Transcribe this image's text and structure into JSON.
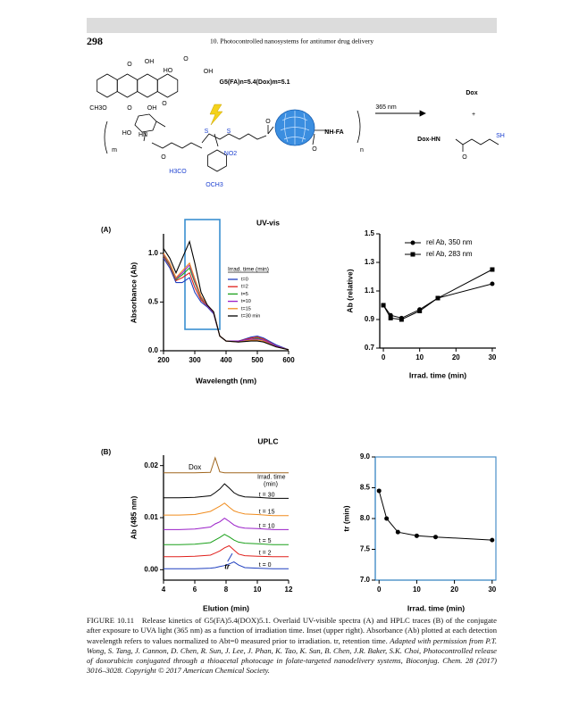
{
  "header": {
    "page_number": "298",
    "running_title": "10. Photocontrolled nanosystems for antitumor drug delivery"
  },
  "scheme": {
    "labels": [
      "G5(FA)n=5.4(Dox)m=5.1",
      "365 nm",
      "Dox",
      "+",
      "Dox-HN",
      "SH",
      "O",
      "O",
      "OH",
      "HO",
      "O",
      "OH",
      "CH3O",
      "O",
      "OH",
      "O",
      "HO",
      "HN",
      "m",
      "S",
      "S",
      "NO2",
      "H3CO",
      "OCH3",
      "O",
      "NH-FA",
      "n",
      "O",
      "O"
    ]
  },
  "panels": [
    "(A)",
    "(B)"
  ],
  "chart_data": [
    {
      "type": "line",
      "title": "UV-vis",
      "x_label": "Wavelength (nm)",
      "y_label": "Absorbance (Ab)",
      "x": [
        200,
        220,
        240,
        260,
        283,
        300,
        320,
        340,
        360,
        380,
        400,
        440,
        480,
        500,
        520,
        560,
        600
      ],
      "xlim": [
        200,
        600
      ],
      "xticks": [
        200,
        300,
        400,
        500,
        600
      ],
      "ylim": [
        0,
        1.2
      ],
      "yticks": [
        {
          "value": 0,
          "label": "0.0"
        },
        0.5,
        {
          "value": 1,
          "label": "1.0"
        }
      ],
      "legend_title": "Irrad. time (min)",
      "legend": "center right",
      "series": [
        {
          "name": "t=0",
          "color": "#1f3fbf",
          "values": [
            0.95,
            0.85,
            0.7,
            0.7,
            0.75,
            0.6,
            0.5,
            0.45,
            0.38,
            0.15,
            0.1,
            0.1,
            0.14,
            0.15,
            0.13,
            0.06,
            0.01
          ]
        },
        {
          "name": "t=2",
          "color": "#e0201c",
          "values": [
            0.97,
            0.87,
            0.72,
            0.75,
            0.8,
            0.65,
            0.52,
            0.46,
            0.39,
            0.15,
            0.1,
            0.1,
            0.13,
            0.14,
            0.12,
            0.05,
            0.01
          ]
        },
        {
          "name": "t=5",
          "color": "#1aa01a",
          "values": [
            0.98,
            0.88,
            0.73,
            0.78,
            0.85,
            0.7,
            0.54,
            0.46,
            0.39,
            0.15,
            0.1,
            0.1,
            0.12,
            0.13,
            0.11,
            0.05,
            0.01
          ]
        },
        {
          "name": "t=10",
          "color": "#9a1fc8",
          "values": [
            0.99,
            0.89,
            0.74,
            0.8,
            0.88,
            0.72,
            0.55,
            0.46,
            0.39,
            0.15,
            0.1,
            0.1,
            0.12,
            0.12,
            0.11,
            0.05,
            0.01
          ]
        },
        {
          "name": "t=15",
          "color": "#f08c1e",
          "values": [
            1.0,
            0.9,
            0.75,
            0.82,
            0.9,
            0.74,
            0.56,
            0.47,
            0.4,
            0.15,
            0.1,
            0.09,
            0.11,
            0.11,
            0.1,
            0.04,
            0.01
          ]
        },
        {
          "name": "t=30 min",
          "color": "#000000",
          "values": [
            1.05,
            0.95,
            0.8,
            0.95,
            1.12,
            0.9,
            0.6,
            0.47,
            0.4,
            0.15,
            0.1,
            0.09,
            0.1,
            0.1,
            0.09,
            0.04,
            0.01
          ]
        }
      ]
    },
    {
      "type": "line",
      "x_label": "Irrad. time (min)",
      "y_label": "Ab (relative)",
      "x": [
        0,
        2,
        5,
        10,
        15,
        30
      ],
      "xlim": [
        -1,
        31
      ],
      "xticks": [
        0,
        10,
        20,
        30
      ],
      "ylim": [
        0.7,
        1.5
      ],
      "yticks": [
        0.7,
        0.9,
        1.1,
        1.3,
        1.5
      ],
      "legend": "upper right",
      "series": [
        {
          "name": "rel Ab, 350 nm",
          "color": "#000000",
          "marker": "circle",
          "values": [
            1.0,
            0.93,
            0.91,
            0.97,
            1.05,
            1.15
          ]
        },
        {
          "name": "rel Ab, 283 nm",
          "color": "#000000",
          "marker": "square",
          "values": [
            1.0,
            0.91,
            0.9,
            0.96,
            1.05,
            1.25
          ]
        }
      ]
    },
    {
      "type": "line",
      "title": "UPLC",
      "x_label": "Elution (min)",
      "y_label": "Ab (485 nm)",
      "x": [
        4,
        5,
        6,
        7,
        7.3,
        7.6,
        7.9,
        8.2,
        8.5,
        8.8,
        9.2,
        10,
        11,
        12
      ],
      "xlim": [
        4,
        12
      ],
      "xticks": [
        4,
        6,
        8,
        10,
        12
      ],
      "ylim": [
        -0.002,
        0.022
      ],
      "yticks": [
        {
          "value": 0,
          "label": "0.00"
        },
        0.01,
        0.02
      ],
      "annotations": [
        "Irrad. time",
        "(min)",
        "tr"
      ],
      "series": [
        {
          "name": "Dox",
          "color": "#a0661e",
          "values": [
            0.0186,
            0.0186,
            0.0186,
            0.0187,
            0.0215,
            0.0188,
            0.0186,
            0.0186,
            0.0186,
            0.0186,
            0.0186,
            0.0186,
            0.0186,
            0.0186
          ]
        },
        {
          "name": "t = 30",
          "color": "#000000",
          "values": [
            0.0138,
            0.0138,
            0.0139,
            0.0142,
            0.0148,
            0.0155,
            0.0165,
            0.0157,
            0.0148,
            0.0143,
            0.014,
            0.0139,
            0.0137,
            0.0137
          ]
        },
        {
          "name": "t = 15",
          "color": "#f08c1e",
          "values": [
            0.0105,
            0.0105,
            0.0106,
            0.0112,
            0.0117,
            0.0122,
            0.0128,
            0.012,
            0.0113,
            0.011,
            0.0107,
            0.0106,
            0.0104,
            0.0104
          ]
        },
        {
          "name": "t = 10",
          "color": "#9a1fc8",
          "values": [
            0.0077,
            0.0077,
            0.0078,
            0.0082,
            0.0088,
            0.0092,
            0.0099,
            0.0093,
            0.0086,
            0.0082,
            0.008,
            0.0079,
            0.0077,
            0.0077
          ]
        },
        {
          "name": "t = 5",
          "color": "#1aa01a",
          "values": [
            0.0048,
            0.0048,
            0.0049,
            0.0052,
            0.0057,
            0.0062,
            0.0068,
            0.0063,
            0.0057,
            0.0053,
            0.0051,
            0.005,
            0.0048,
            0.0048
          ]
        },
        {
          "name": "t = 2",
          "color": "#e0201c",
          "values": [
            0.0025,
            0.0025,
            0.0026,
            0.0028,
            0.0032,
            0.0036,
            0.0042,
            0.0046,
            0.0038,
            0.003,
            0.0027,
            0.0026,
            0.0025,
            0.0025
          ]
        },
        {
          "name": "t = 0",
          "color": "#1f3fbf",
          "values": [
            0.0002,
            0.0002,
            0.0002,
            0.0003,
            0.0004,
            0.0006,
            0.0008,
            0.0011,
            0.0015,
            0.0009,
            0.0004,
            0.0003,
            0.0002,
            0.0002
          ]
        }
      ]
    },
    {
      "type": "line",
      "x_label": "Irrad. time (min)",
      "y_label": "tr (min)",
      "x": [
        0,
        2,
        5,
        10,
        15,
        30
      ],
      "xlim": [
        -1,
        31
      ],
      "xticks": [
        0,
        10,
        20,
        30
      ],
      "ylim": [
        7,
        9
      ],
      "yticks": [
        {
          "value": 7,
          "label": "7.0"
        },
        7.5,
        {
          "value": 8,
          "label": "8.0"
        },
        8.5,
        {
          "value": 9,
          "label": "9.0"
        }
      ],
      "frame": true,
      "frame_color": "#4a90c8",
      "series": [
        {
          "name": "tr",
          "color": "#000000",
          "marker": "circle",
          "values": [
            8.45,
            8.0,
            7.78,
            7.72,
            7.7,
            7.65
          ]
        }
      ]
    }
  ],
  "caption": {
    "label": "FIGURE 10.11",
    "text": "Release kinetics of G5(FA)5.4(DOX)5.1. Overlaid UV-visible spectra (A) and HPLC traces (B) of the conjugate after exposure to UVA light (365 nm) as a function of irradiation time. Inset (upper right). Absorbance (Ab) plotted at each detection wavelength refers to values normalized to Abt=0 measured prior to irradiation. tr, retention time.",
    "credit": "Adapted with permission from P.T. Wong, S. Tang, J. Cannon, D. Chen, R. Sun, J. Lee, J. Phan, K. Tao, K. Sun, B. Chen, J.R. Baker, S.K. Choi, Photocontrolled release of doxorubicin conjugated through a thioacetal photocage in folate-targeted nanodelivery systems, Bioconjug. Chem. 28 (2017) 3016–3028. Copyright © 2017 American Chemical Society."
  }
}
